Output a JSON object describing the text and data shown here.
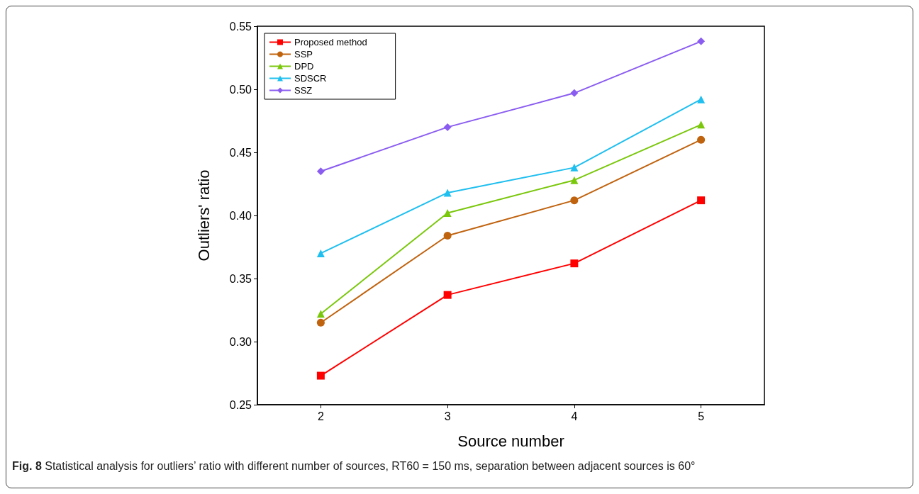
{
  "chart_data": {
    "type": "line",
    "xlabel": "Source number",
    "ylabel": "Outliers' ratio",
    "categories": [
      "2",
      "3",
      "4",
      "5"
    ],
    "ylim": [
      0.25,
      0.55
    ],
    "yticks": [
      0.25,
      {
        "value": 0.3,
        "label": "0.30"
      },
      0.35,
      {
        "value": 0.4,
        "label": "0.40"
      },
      0.45,
      {
        "value": 0.5,
        "label": "0.50"
      },
      0.55
    ],
    "grid": false,
    "legend": "top left",
    "line_style": "solid",
    "series": [
      {
        "name": "Proposed method",
        "color": "#ff0000",
        "marker": "square",
        "values": [
          0.273,
          0.337,
          0.362,
          0.412
        ]
      },
      {
        "name": "SSP",
        "color": "#c0630f",
        "marker": "circle",
        "values": [
          0.315,
          0.384,
          0.412,
          0.46
        ]
      },
      {
        "name": "DPD",
        "color": "#7ac70c",
        "marker": "triangle",
        "values": [
          0.322,
          0.402,
          0.428,
          0.472
        ]
      },
      {
        "name": "SDSCR",
        "color": "#1fbfef",
        "marker": "triangle",
        "values": [
          0.37,
          0.418,
          0.438,
          0.492
        ]
      },
      {
        "name": "SSZ",
        "color": "#8a5cf0",
        "marker": "diamond",
        "values": [
          0.435,
          0.47,
          0.497,
          0.538
        ]
      }
    ],
    "annotations": [
      "Fig. 8 Statistical analysis for outliers’ ratio with different number of sources, RT60 = 150 ms, separation between adjacent sources is 60°"
    ]
  }
}
